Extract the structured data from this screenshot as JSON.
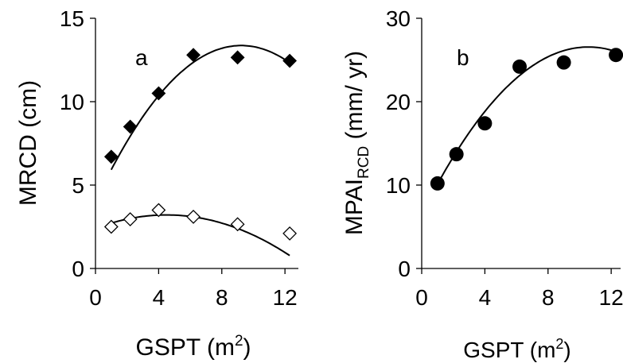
{
  "chart_data": [
    {
      "panel": "a",
      "type": "scatter",
      "xlabel": "GSPT (m",
      "xlabel_sup": "2",
      "xlabel_close": ")",
      "ylabel": "MRCD (cm)",
      "xlim": [
        0,
        13
      ],
      "ylim": [
        0,
        15
      ],
      "xticks": [
        "0",
        "4",
        "8",
        "12"
      ],
      "yticks": [
        "0",
        "5",
        "10",
        "15"
      ],
      "series": [
        {
          "marker": "diamond-filled",
          "x": [
            1.0,
            2.2,
            4.0,
            6.2,
            9.0,
            12.3
          ],
          "y": [
            6.7,
            8.5,
            10.5,
            12.8,
            12.65,
            12.45
          ],
          "fit": [
            4.0,
            2.03,
            -0.11
          ]
        },
        {
          "marker": "diamond-open",
          "x": [
            1.0,
            2.2,
            4.0,
            6.2,
            9.0,
            12.3
          ],
          "y": [
            2.5,
            2.95,
            3.5,
            3.1,
            2.65,
            2.1
          ],
          "fit": [
            2.4,
            0.36,
            -0.04
          ]
        }
      ]
    },
    {
      "panel": "b",
      "type": "scatter",
      "xlabel": "GSPT (m",
      "xlabel_sup": "2",
      "xlabel_close": ")",
      "ylabel": "MPAI",
      "ylabel_sub": "RCD",
      "ylabel_rest": " (mm/ yr)",
      "xlim": [
        0,
        13
      ],
      "ylim": [
        0,
        30
      ],
      "xticks": [
        "0",
        "4",
        "8",
        "12"
      ],
      "yticks": [
        "0",
        "10",
        "20",
        "30"
      ],
      "series": [
        {
          "marker": "circle-filled",
          "x": [
            1.0,
            2.2,
            4.0,
            6.2,
            9.0,
            12.3
          ],
          "y": [
            10.2,
            13.7,
            17.4,
            24.2,
            24.7,
            25.6
          ],
          "fit": [
            6.5,
            3.8,
            -0.18
          ]
        }
      ]
    }
  ]
}
